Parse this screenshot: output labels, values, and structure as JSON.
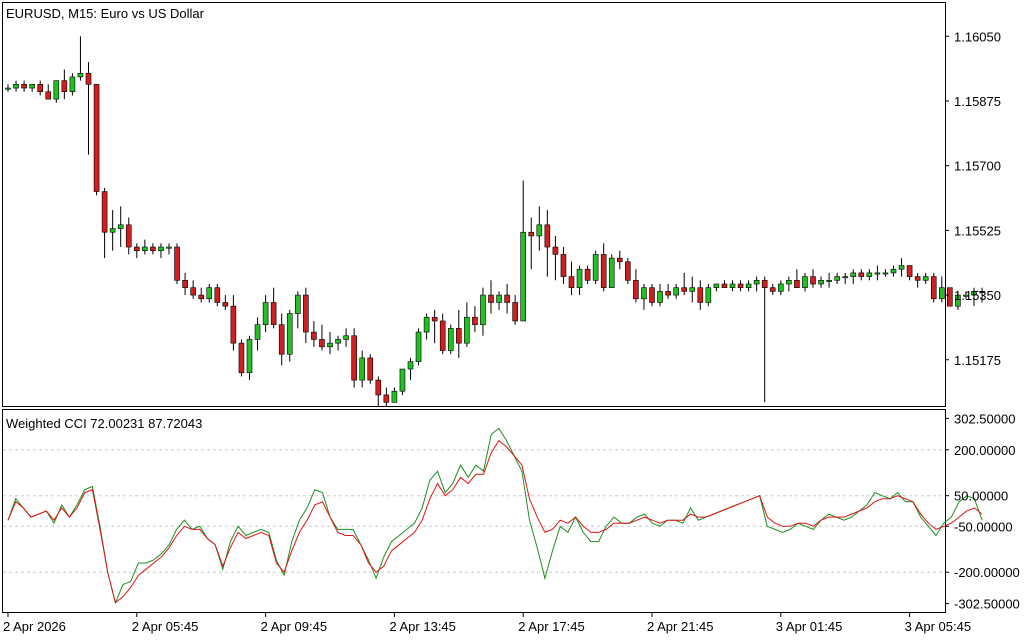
{
  "main_title": "EURUSD, M15:  Euro vs US Dollar",
  "indicator_title": "Weighted CCI 72.00231 87.72043",
  "colors": {
    "bull": "#22c022",
    "bear": "#d01f1f",
    "cci_fast": "#1f8f1f",
    "cci_slow": "#e01515",
    "grid": "#c8c8c8",
    "frame": "#000000"
  },
  "chart_data": [
    {
      "type": "candlestick",
      "title": "EURUSD, M15:  Euro vs US Dollar",
      "ylim": [
        1.1505,
        1.1614
      ],
      "yticks": [
        "1.16050",
        "1.15875",
        "1.15700",
        "1.15525",
        "1.15350",
        "1.15175"
      ],
      "ytick_values": [
        1.1605,
        1.15875,
        1.157,
        1.15525,
        1.1535,
        1.15175
      ],
      "xticks": [
        "2 Apr 2026",
        "2 Apr 05:45",
        "2 Apr 09:45",
        "2 Apr 13:45",
        "2 Apr 17:45",
        "2 Apr 21:45",
        "3 Apr 01:45",
        "3 Apr 05:45"
      ],
      "xtick_index": [
        0,
        16,
        32,
        48,
        64,
        80,
        96,
        112
      ],
      "grid": false,
      "candles": [
        [
          1.1591,
          1.1592,
          1.159,
          1.1591
        ],
        [
          1.1591,
          1.1593,
          1.159,
          1.1592
        ],
        [
          1.1592,
          1.1593,
          1.159,
          1.1591
        ],
        [
          1.1591,
          1.1592,
          1.159,
          1.1592
        ],
        [
          1.1592,
          1.1593,
          1.1589,
          1.159
        ],
        [
          1.159,
          1.1592,
          1.1588,
          1.1588
        ],
        [
          1.1588,
          1.1593,
          1.1587,
          1.1593
        ],
        [
          1.1593,
          1.1596,
          1.1588,
          1.159
        ],
        [
          1.159,
          1.1595,
          1.1589,
          1.1594
        ],
        [
          1.1594,
          1.1605,
          1.1593,
          1.1595
        ],
        [
          1.1595,
          1.1598,
          1.1573,
          1.1592
        ],
        [
          1.1592,
          1.1592,
          1.1562,
          1.1563
        ],
        [
          1.1563,
          1.1564,
          1.1545,
          1.1552
        ],
        [
          1.1552,
          1.1558,
          1.1547,
          1.1553
        ],
        [
          1.1553,
          1.1559,
          1.1548,
          1.1554
        ],
        [
          1.1554,
          1.1556,
          1.1546,
          1.1548
        ],
        [
          1.1548,
          1.1549,
          1.1545,
          1.1547
        ],
        [
          1.1547,
          1.155,
          1.1546,
          1.1548
        ],
        [
          1.1548,
          1.1549,
          1.1546,
          1.1547
        ],
        [
          1.1547,
          1.1549,
          1.1545,
          1.1548
        ],
        [
          1.1548,
          1.1549,
          1.1546,
          1.1548
        ],
        [
          1.1548,
          1.1549,
          1.1538,
          1.1539
        ],
        [
          1.1539,
          1.1541,
          1.1535,
          1.1537
        ],
        [
          1.1537,
          1.1539,
          1.1534,
          1.1535
        ],
        [
          1.1535,
          1.1537,
          1.1533,
          1.1534
        ],
        [
          1.1534,
          1.1538,
          1.1533,
          1.1537
        ],
        [
          1.1537,
          1.1538,
          1.1532,
          1.1533
        ],
        [
          1.1533,
          1.1535,
          1.1531,
          1.1532
        ],
        [
          1.1532,
          1.1535,
          1.152,
          1.1522
        ],
        [
          1.1522,
          1.1523,
          1.1513,
          1.1514
        ],
        [
          1.1514,
          1.1524,
          1.1512,
          1.1523
        ],
        [
          1.1523,
          1.1529,
          1.152,
          1.1527
        ],
        [
          1.1527,
          1.1535,
          1.1525,
          1.1533
        ],
        [
          1.1533,
          1.1537,
          1.1526,
          1.1527
        ],
        [
          1.1527,
          1.153,
          1.1516,
          1.1519
        ],
        [
          1.1519,
          1.1531,
          1.1517,
          1.153
        ],
        [
          1.153,
          1.1536,
          1.1526,
          1.1535
        ],
        [
          1.1535,
          1.1537,
          1.1522,
          1.1525
        ],
        [
          1.1525,
          1.1528,
          1.1521,
          1.1523
        ],
        [
          1.1523,
          1.1527,
          1.152,
          1.1521
        ],
        [
          1.1521,
          1.1525,
          1.1519,
          1.1522
        ],
        [
          1.1522,
          1.1524,
          1.152,
          1.1523
        ],
        [
          1.1523,
          1.1526,
          1.1521,
          1.1524
        ],
        [
          1.1524,
          1.1526,
          1.151,
          1.1512
        ],
        [
          1.1512,
          1.152,
          1.151,
          1.1518
        ],
        [
          1.1518,
          1.1519,
          1.1511,
          1.1512
        ],
        [
          1.1512,
          1.1513,
          1.1505,
          1.1508
        ],
        [
          1.1508,
          1.151,
          1.1505,
          1.1506
        ],
        [
          1.1506,
          1.151,
          1.1506,
          1.1509
        ],
        [
          1.1509,
          1.1515,
          1.1508,
          1.1515
        ],
        [
          1.1515,
          1.1518,
          1.1512,
          1.1517
        ],
        [
          1.1517,
          1.1526,
          1.1516,
          1.1525
        ],
        [
          1.1525,
          1.153,
          1.1523,
          1.1529
        ],
        [
          1.1529,
          1.1531,
          1.1522,
          1.1528
        ],
        [
          1.1528,
          1.153,
          1.1519,
          1.152
        ],
        [
          1.152,
          1.1527,
          1.1519,
          1.1526
        ],
        [
          1.1526,
          1.1531,
          1.1518,
          1.1522
        ],
        [
          1.1522,
          1.1533,
          1.1521,
          1.1529
        ],
        [
          1.1529,
          1.1532,
          1.1525,
          1.1527
        ],
        [
          1.1527,
          1.1537,
          1.1524,
          1.1535
        ],
        [
          1.1535,
          1.1539,
          1.153,
          1.1533
        ],
        [
          1.1533,
          1.1536,
          1.1531,
          1.1535
        ],
        [
          1.1535,
          1.1538,
          1.153,
          1.1533
        ],
        [
          1.1533,
          1.1535,
          1.1527,
          1.1528
        ],
        [
          1.1528,
          1.1566,
          1.1528,
          1.1552
        ],
        [
          1.1552,
          1.1556,
          1.1542,
          1.1551
        ],
        [
          1.1551,
          1.1559,
          1.1547,
          1.1554
        ],
        [
          1.1554,
          1.1558,
          1.154,
          1.1548
        ],
        [
          1.1548,
          1.1551,
          1.1539,
          1.1546
        ],
        [
          1.1546,
          1.1548,
          1.1538,
          1.154
        ],
        [
          1.154,
          1.1544,
          1.1535,
          1.1537
        ],
        [
          1.1537,
          1.1543,
          1.1535,
          1.1542
        ],
        [
          1.1542,
          1.1543,
          1.1538,
          1.1539
        ],
        [
          1.1539,
          1.1547,
          1.1538,
          1.1546
        ],
        [
          1.1546,
          1.1549,
          1.1536,
          1.1537
        ],
        [
          1.1537,
          1.1546,
          1.1537,
          1.1545
        ],
        [
          1.1545,
          1.1547,
          1.1542,
          1.1544
        ],
        [
          1.1544,
          1.1545,
          1.1538,
          1.1539
        ],
        [
          1.1539,
          1.1542,
          1.1533,
          1.1534
        ],
        [
          1.1534,
          1.1538,
          1.1531,
          1.1537
        ],
        [
          1.1537,
          1.1538,
          1.1532,
          1.1533
        ],
        [
          1.1533,
          1.1538,
          1.1532,
          1.1536
        ],
        [
          1.1536,
          1.1538,
          1.1534,
          1.1535
        ],
        [
          1.1535,
          1.1538,
          1.1534,
          1.1537
        ],
        [
          1.1537,
          1.1541,
          1.1535,
          1.1536
        ],
        [
          1.1536,
          1.154,
          1.1533,
          1.1537
        ],
        [
          1.1537,
          1.1539,
          1.1531,
          1.1533
        ],
        [
          1.1533,
          1.1538,
          1.1532,
          1.1537
        ],
        [
          1.1537,
          1.1538,
          1.1536,
          1.1538
        ],
        [
          1.1538,
          1.1539,
          1.1537,
          1.1537
        ],
        [
          1.1537,
          1.1539,
          1.1536,
          1.1538
        ],
        [
          1.1538,
          1.1539,
          1.1536,
          1.1537
        ],
        [
          1.1537,
          1.1539,
          1.1536,
          1.1538
        ],
        [
          1.1538,
          1.154,
          1.1536,
          1.1539
        ],
        [
          1.1539,
          1.154,
          1.1506,
          1.1537
        ],
        [
          1.1537,
          1.1538,
          1.1535,
          1.1536
        ],
        [
          1.1536,
          1.1539,
          1.1535,
          1.1538
        ],
        [
          1.1538,
          1.154,
          1.1536,
          1.1539
        ],
        [
          1.1539,
          1.1542,
          1.1537,
          1.1537
        ],
        [
          1.1537,
          1.1541,
          1.1536,
          1.154
        ],
        [
          1.154,
          1.1542,
          1.1537,
          1.1538
        ],
        [
          1.1538,
          1.154,
          1.1537,
          1.1539
        ],
        [
          1.1539,
          1.1541,
          1.1537,
          1.1539
        ],
        [
          1.1539,
          1.1541,
          1.1538,
          1.154
        ],
        [
          1.154,
          1.1541,
          1.1538,
          1.154
        ],
        [
          1.154,
          1.1542,
          1.1538,
          1.1541
        ],
        [
          1.1541,
          1.1542,
          1.1539,
          1.154
        ],
        [
          1.154,
          1.1542,
          1.1539,
          1.1541
        ],
        [
          1.1541,
          1.1543,
          1.1539,
          1.1541
        ],
        [
          1.1541,
          1.1542,
          1.154,
          1.1541
        ],
        [
          1.1541,
          1.1543,
          1.154,
          1.1542
        ],
        [
          1.1542,
          1.1545,
          1.154,
          1.1543
        ],
        [
          1.1543,
          1.1543,
          1.1539,
          1.154
        ],
        [
          1.154,
          1.1541,
          1.1537,
          1.1539
        ],
        [
          1.1539,
          1.1541,
          1.1538,
          1.154
        ],
        [
          1.154,
          1.1541,
          1.1533,
          1.1534
        ],
        [
          1.1534,
          1.154,
          1.1533,
          1.1537
        ],
        [
          1.1537,
          1.1537,
          1.1532,
          1.1532
        ],
        [
          1.1532,
          1.1536,
          1.1531,
          1.1535
        ],
        [
          1.1535,
          1.1536,
          1.1534,
          1.1535
        ],
        [
          1.1535,
          1.1537,
          1.1532,
          1.1536
        ],
        [
          1.1536,
          1.1537,
          1.1533,
          1.1536
        ]
      ]
    },
    {
      "type": "line",
      "title": "Weighted CCI 72.00231 87.72043",
      "ylim": [
        -330,
        330
      ],
      "yticks": [
        "302.50000",
        "200.00000",
        "50.00000",
        "-50.00000",
        "-200.00000",
        "-302.50000"
      ],
      "ytick_values": [
        302.5,
        200,
        50,
        -50,
        -200,
        -302.5
      ],
      "dashed_levels": [
        200,
        50,
        -50,
        -200
      ],
      "series": [
        {
          "values": [
            -30,
            40,
            10,
            -20,
            -10,
            0,
            -40,
            20,
            -20,
            20,
            70,
            80,
            -50,
            -200,
            -300,
            -240,
            -230,
            -170,
            -170,
            -160,
            -140,
            -110,
            -60,
            -30,
            -60,
            -50,
            -90,
            -110,
            -190,
            -100,
            -50,
            -80,
            -70,
            -60,
            -70,
            -160,
            -210,
            -100,
            -30,
            10,
            70,
            60,
            -20,
            -60,
            -60,
            -60,
            -110,
            -160,
            -220,
            -150,
            -100,
            -80,
            -60,
            -40,
            10,
            100,
            130,
            60,
            90,
            150,
            110,
            150,
            130,
            250,
            270,
            230,
            180,
            130,
            -30,
            -120,
            -220,
            -130,
            -50,
            -70,
            -20,
            -70,
            -100,
            -100,
            -50,
            -20,
            -40,
            -40,
            -20,
            -10,
            -40,
            -50,
            -30,
            -30,
            -40,
            10,
            -30,
            -20,
            -10,
            0,
            10,
            20,
            30,
            40,
            50,
            -50,
            -60,
            -70,
            -60,
            -40,
            -50,
            -60,
            -30,
            -10,
            -20,
            -30,
            -20,
            0,
            20,
            60,
            50,
            40,
            60,
            30,
            30,
            -20,
            -50,
            -80,
            -40,
            -20,
            30,
            50,
            40,
            -30
          ]
        },
        {
          "values": [
            -30,
            30,
            10,
            -20,
            -10,
            0,
            -30,
            10,
            -20,
            10,
            60,
            70,
            -60,
            -200,
            -300,
            -280,
            -250,
            -210,
            -190,
            -170,
            -150,
            -120,
            -80,
            -50,
            -60,
            -60,
            -90,
            -110,
            -180,
            -120,
            -70,
            -90,
            -80,
            -70,
            -80,
            -170,
            -200,
            -130,
            -70,
            -30,
            20,
            30,
            -20,
            -70,
            -80,
            -80,
            -110,
            -170,
            -200,
            -180,
            -130,
            -110,
            -90,
            -70,
            -30,
            40,
            90,
            50,
            70,
            110,
            90,
            120,
            120,
            190,
            230,
            210,
            180,
            150,
            40,
            -20,
            -70,
            -60,
            -30,
            -40,
            -20,
            -50,
            -70,
            -70,
            -60,
            -40,
            -40,
            -40,
            -30,
            -20,
            -30,
            -40,
            -30,
            -30,
            -30,
            -10,
            -20,
            -20,
            -10,
            0,
            10,
            20,
            30,
            40,
            50,
            -20,
            -40,
            -50,
            -50,
            -40,
            -40,
            -50,
            -30,
            -20,
            -20,
            -20,
            -10,
            0,
            10,
            30,
            40,
            40,
            50,
            40,
            30,
            -10,
            -40,
            -60,
            -50,
            -40,
            -20,
            0,
            10,
            -10
          ]
        }
      ]
    }
  ]
}
